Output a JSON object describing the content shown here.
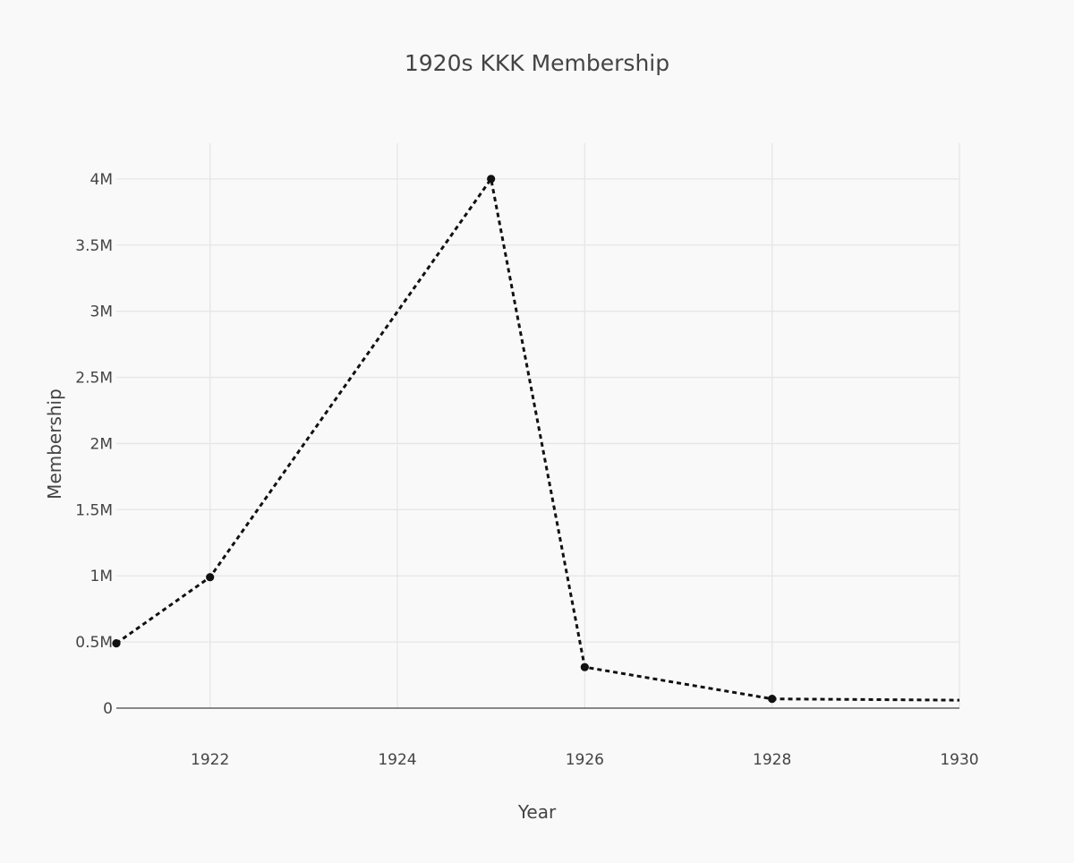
{
  "chart_data": {
    "type": "line",
    "title": "1920s KKK Membership",
    "xlabel": "Year",
    "ylabel": "Membership",
    "x": [
      1921,
      1922,
      1925,
      1926,
      1928,
      1930
    ],
    "series": [
      {
        "values": [
          490000,
          990000,
          4000000,
          310000,
          70000,
          60000
        ],
        "markers": [
          true,
          true,
          true,
          true,
          true,
          false
        ],
        "color": "#111111",
        "line_style": "dotted"
      }
    ],
    "xlim": [
      1921,
      1930
    ],
    "ylim": [
      0,
      4270000
    ],
    "x_ticks": [
      1922,
      1924,
      1926,
      1928,
      1930
    ],
    "x_tick_labels": [
      "1922",
      "1924",
      "1926",
      "1928",
      "1930"
    ],
    "y_ticks": [
      0,
      500000,
      1000000,
      1500000,
      2000000,
      2500000,
      3000000,
      3500000,
      4000000
    ],
    "y_tick_labels": [
      "0",
      "0.5M",
      "1M",
      "1.5M",
      "2M",
      "2.5M",
      "3M",
      "3.5M",
      "4M"
    ],
    "grid": true,
    "legend": "none",
    "background": "#f9f9f9",
    "gridline_color": "#e6e6e6",
    "text_color": "#444444"
  }
}
